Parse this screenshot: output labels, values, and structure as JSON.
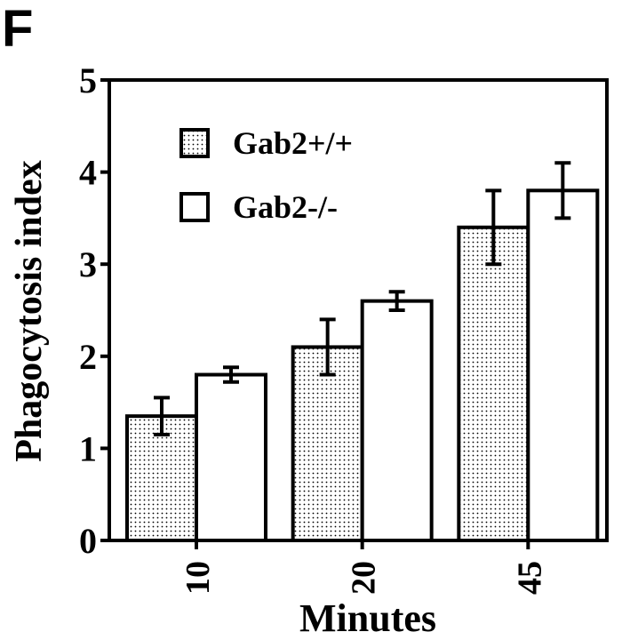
{
  "panel_label": "F",
  "chart_data": {
    "type": "bar",
    "title": "",
    "xlabel": "Minutes",
    "ylabel": "Phagocytosis index",
    "categories": [
      "10",
      "20",
      "45"
    ],
    "ylim": [
      0,
      5
    ],
    "yticks": [
      "0",
      "1",
      "2",
      "3",
      "4",
      "5"
    ],
    "grid": false,
    "legend_position": "top-left",
    "series": [
      {
        "name": "Gab2+/+",
        "fill": "dotted",
        "values": [
          1.35,
          2.1,
          3.4
        ],
        "errors": [
          0.2,
          0.3,
          0.4
        ]
      },
      {
        "name": "Gab2-/-",
        "fill": "white",
        "values": [
          1.8,
          2.6,
          3.8
        ],
        "errors": [
          0.08,
          0.1,
          0.3
        ]
      }
    ],
    "colors": {
      "ink": "#000000",
      "background": "#ffffff",
      "dot": "#000000"
    }
  }
}
